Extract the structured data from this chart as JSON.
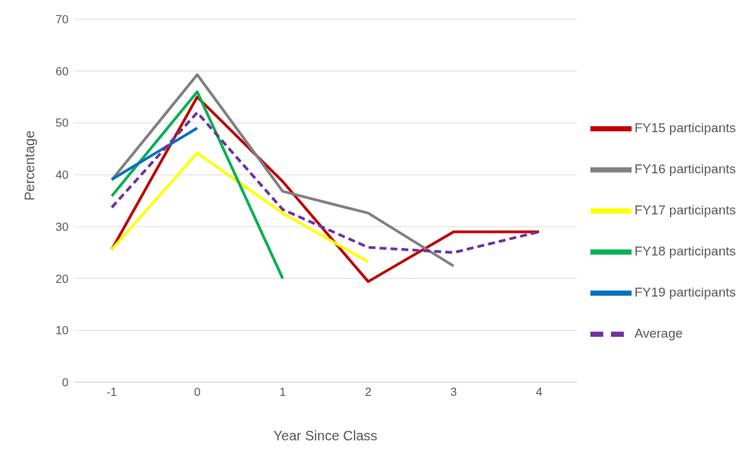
{
  "chart_data": {
    "type": "line",
    "xlabel": "Year Since Class",
    "ylabel": "Percentage",
    "categories": [
      "-1",
      "0",
      "1",
      "2",
      "3",
      "4"
    ],
    "ylim": [
      0,
      70
    ],
    "yticks": [
      0,
      10,
      20,
      30,
      40,
      50,
      60,
      70
    ],
    "grid": "y",
    "legend": "right",
    "marker": "none",
    "series": [
      {
        "name": "FY15 participants",
        "color": "#c00000",
        "values": [
          25.6,
          55,
          38.7,
          19.4,
          29,
          29
        ]
      },
      {
        "name": "FY16 participants",
        "color": "#808080",
        "values": [
          39,
          59.3,
          36.8,
          32.6,
          22.4,
          null
        ]
      },
      {
        "name": "FY17 participants",
        "color": "#ffff00",
        "values": [
          25.6,
          44.2,
          32.6,
          23.2,
          null,
          null
        ]
      },
      {
        "name": "FY18 participants",
        "color": "#00b050",
        "values": [
          35.9,
          56,
          20,
          null,
          null,
          null
        ]
      },
      {
        "name": "FY19 participants",
        "color": "#0070c0",
        "values": [
          39.1,
          49,
          null,
          null,
          null,
          null
        ]
      },
      {
        "name": "Average",
        "color": "#7030a0",
        "line_style": "dashed",
        "values": [
          33.7,
          52,
          33.3,
          26,
          25,
          29
        ]
      }
    ]
  }
}
